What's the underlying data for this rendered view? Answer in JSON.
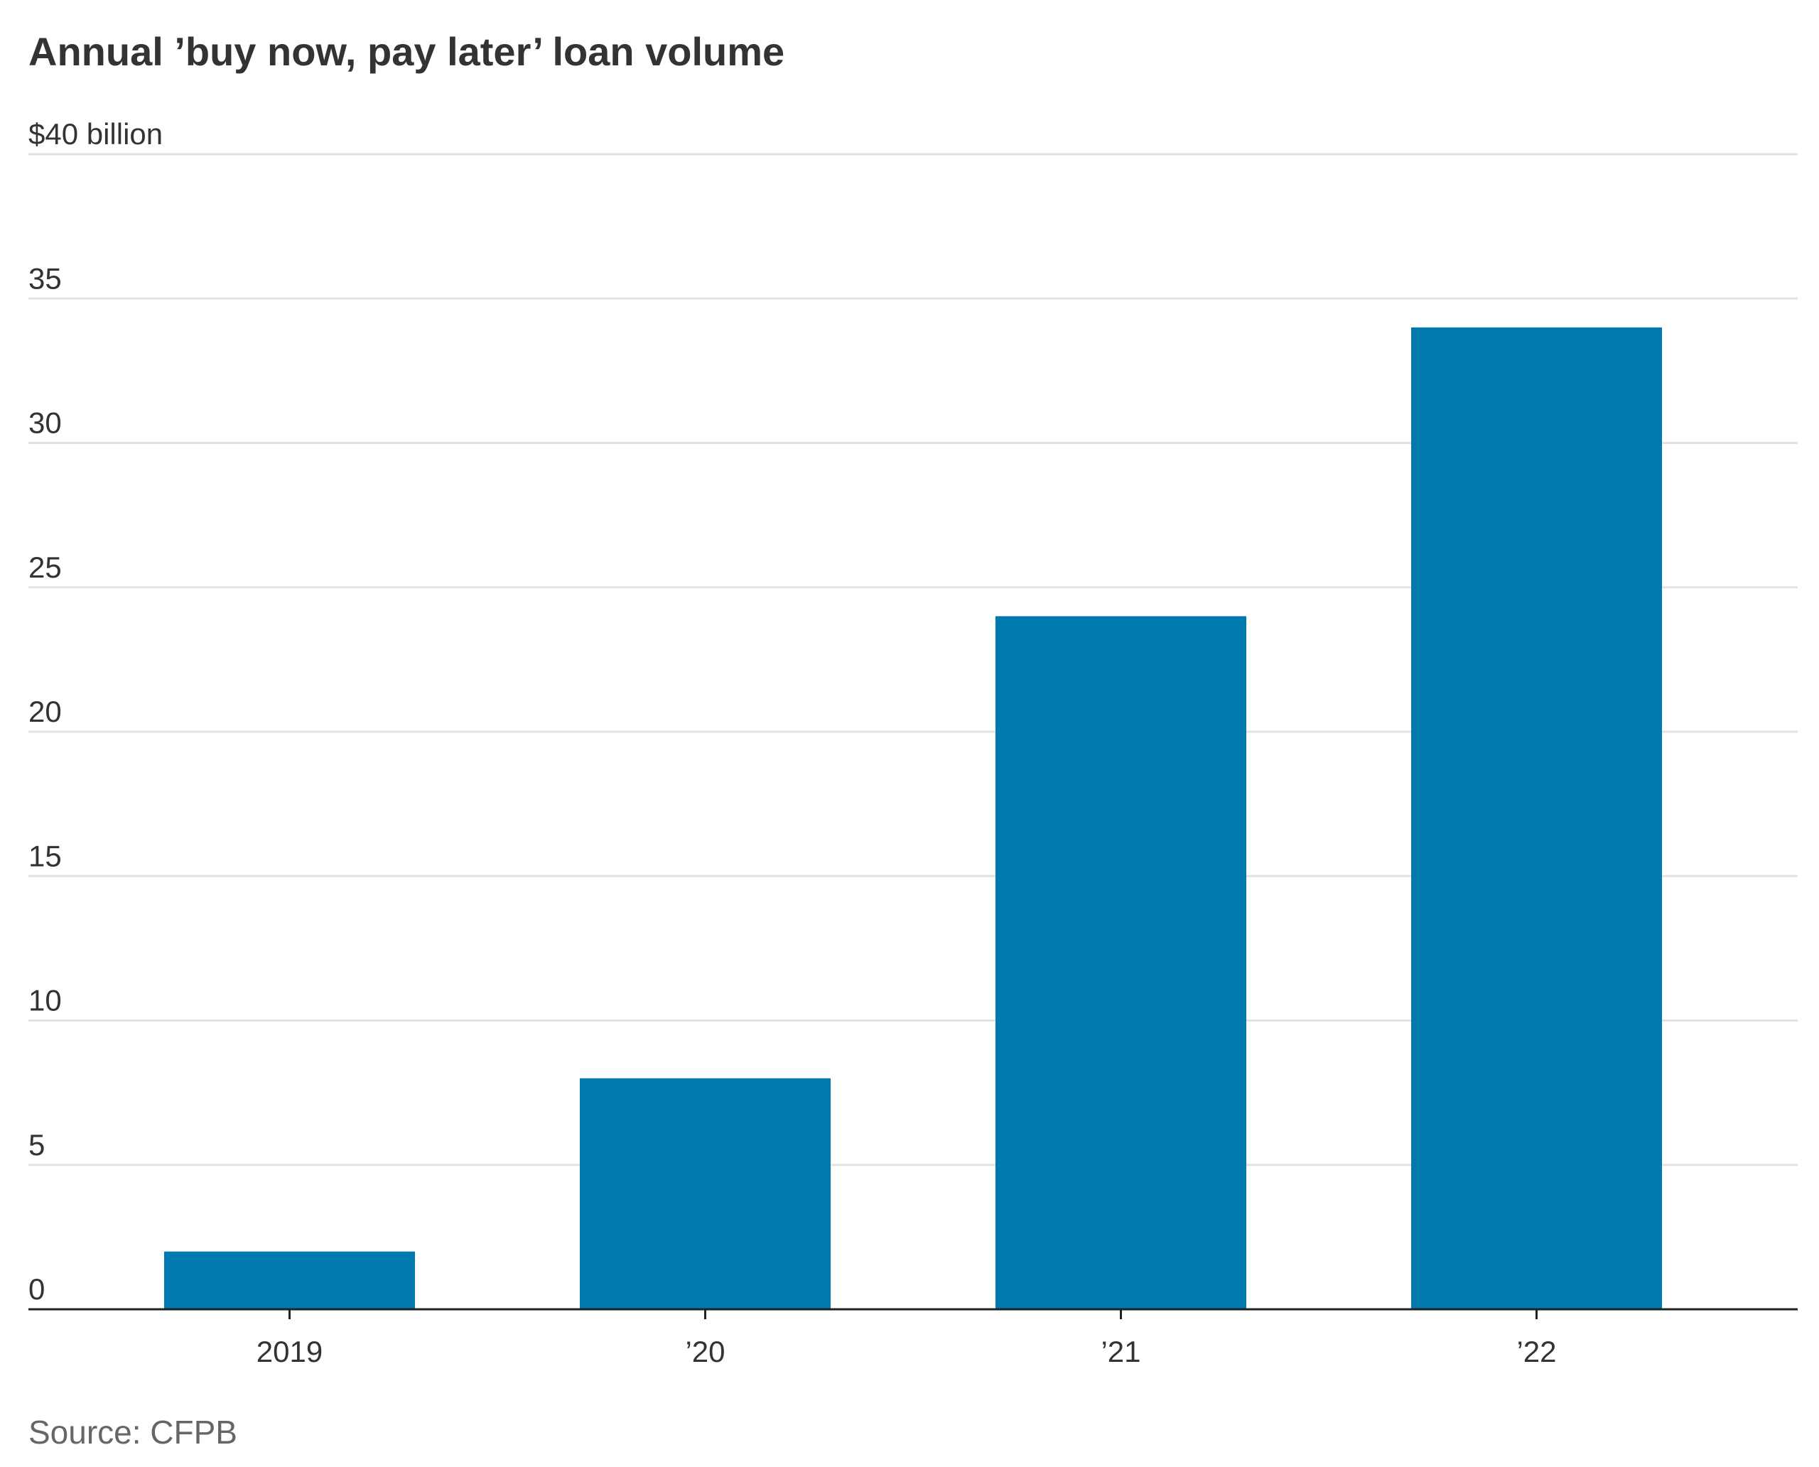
{
  "chart_data": {
    "type": "bar",
    "title": "Annual ’buy now, pay later’ loan volume",
    "ylabel": "",
    "xlabel": "",
    "unit_label": "$40 billion",
    "categories": [
      "2019",
      "’20",
      "’21",
      "’22"
    ],
    "values": [
      2,
      8,
      24,
      34
    ],
    "ylim": [
      0,
      40
    ],
    "yticks": [
      0,
      5,
      10,
      15,
      20,
      25,
      30,
      35,
      40
    ],
    "ytick_labels": [
      "0",
      "5",
      "10",
      "15",
      "20",
      "25",
      "30",
      "35",
      "$40 billion"
    ],
    "grid": true,
    "legend": "none",
    "bar_color": "#0079AF",
    "grid_color": "#e2e2e2",
    "axis_color": "#222222"
  },
  "source": "Source: CFPB"
}
